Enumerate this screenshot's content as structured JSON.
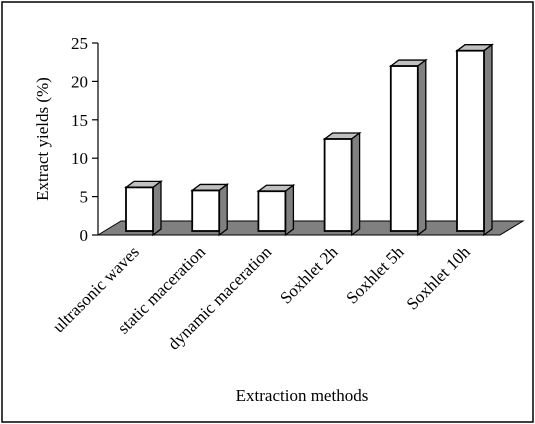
{
  "chart_data": {
    "type": "bar",
    "title": "",
    "xlabel": "Extraction methods",
    "ylabel": "Extract yields (%)",
    "categories": [
      "ultrasonic waves",
      "static maceration",
      "dynamic maceration",
      "Soxhlet 2h",
      "Soxhlet 5h",
      "Soxhlet 10h"
    ],
    "values": [
      6.2,
      5.8,
      5.7,
      12.5,
      22.0,
      24.0
    ],
    "ylim": [
      0,
      25
    ],
    "yticks": [
      "0",
      "5",
      "10",
      "15",
      "20",
      "25"
    ],
    "grid": false,
    "legend": "none",
    "style": "3d-column",
    "colors": {
      "bar_front": "#ffffff",
      "bar_side": "#808080",
      "bar_top": "#c0c0c0",
      "floor": "#808080",
      "stroke": "#000000"
    }
  }
}
